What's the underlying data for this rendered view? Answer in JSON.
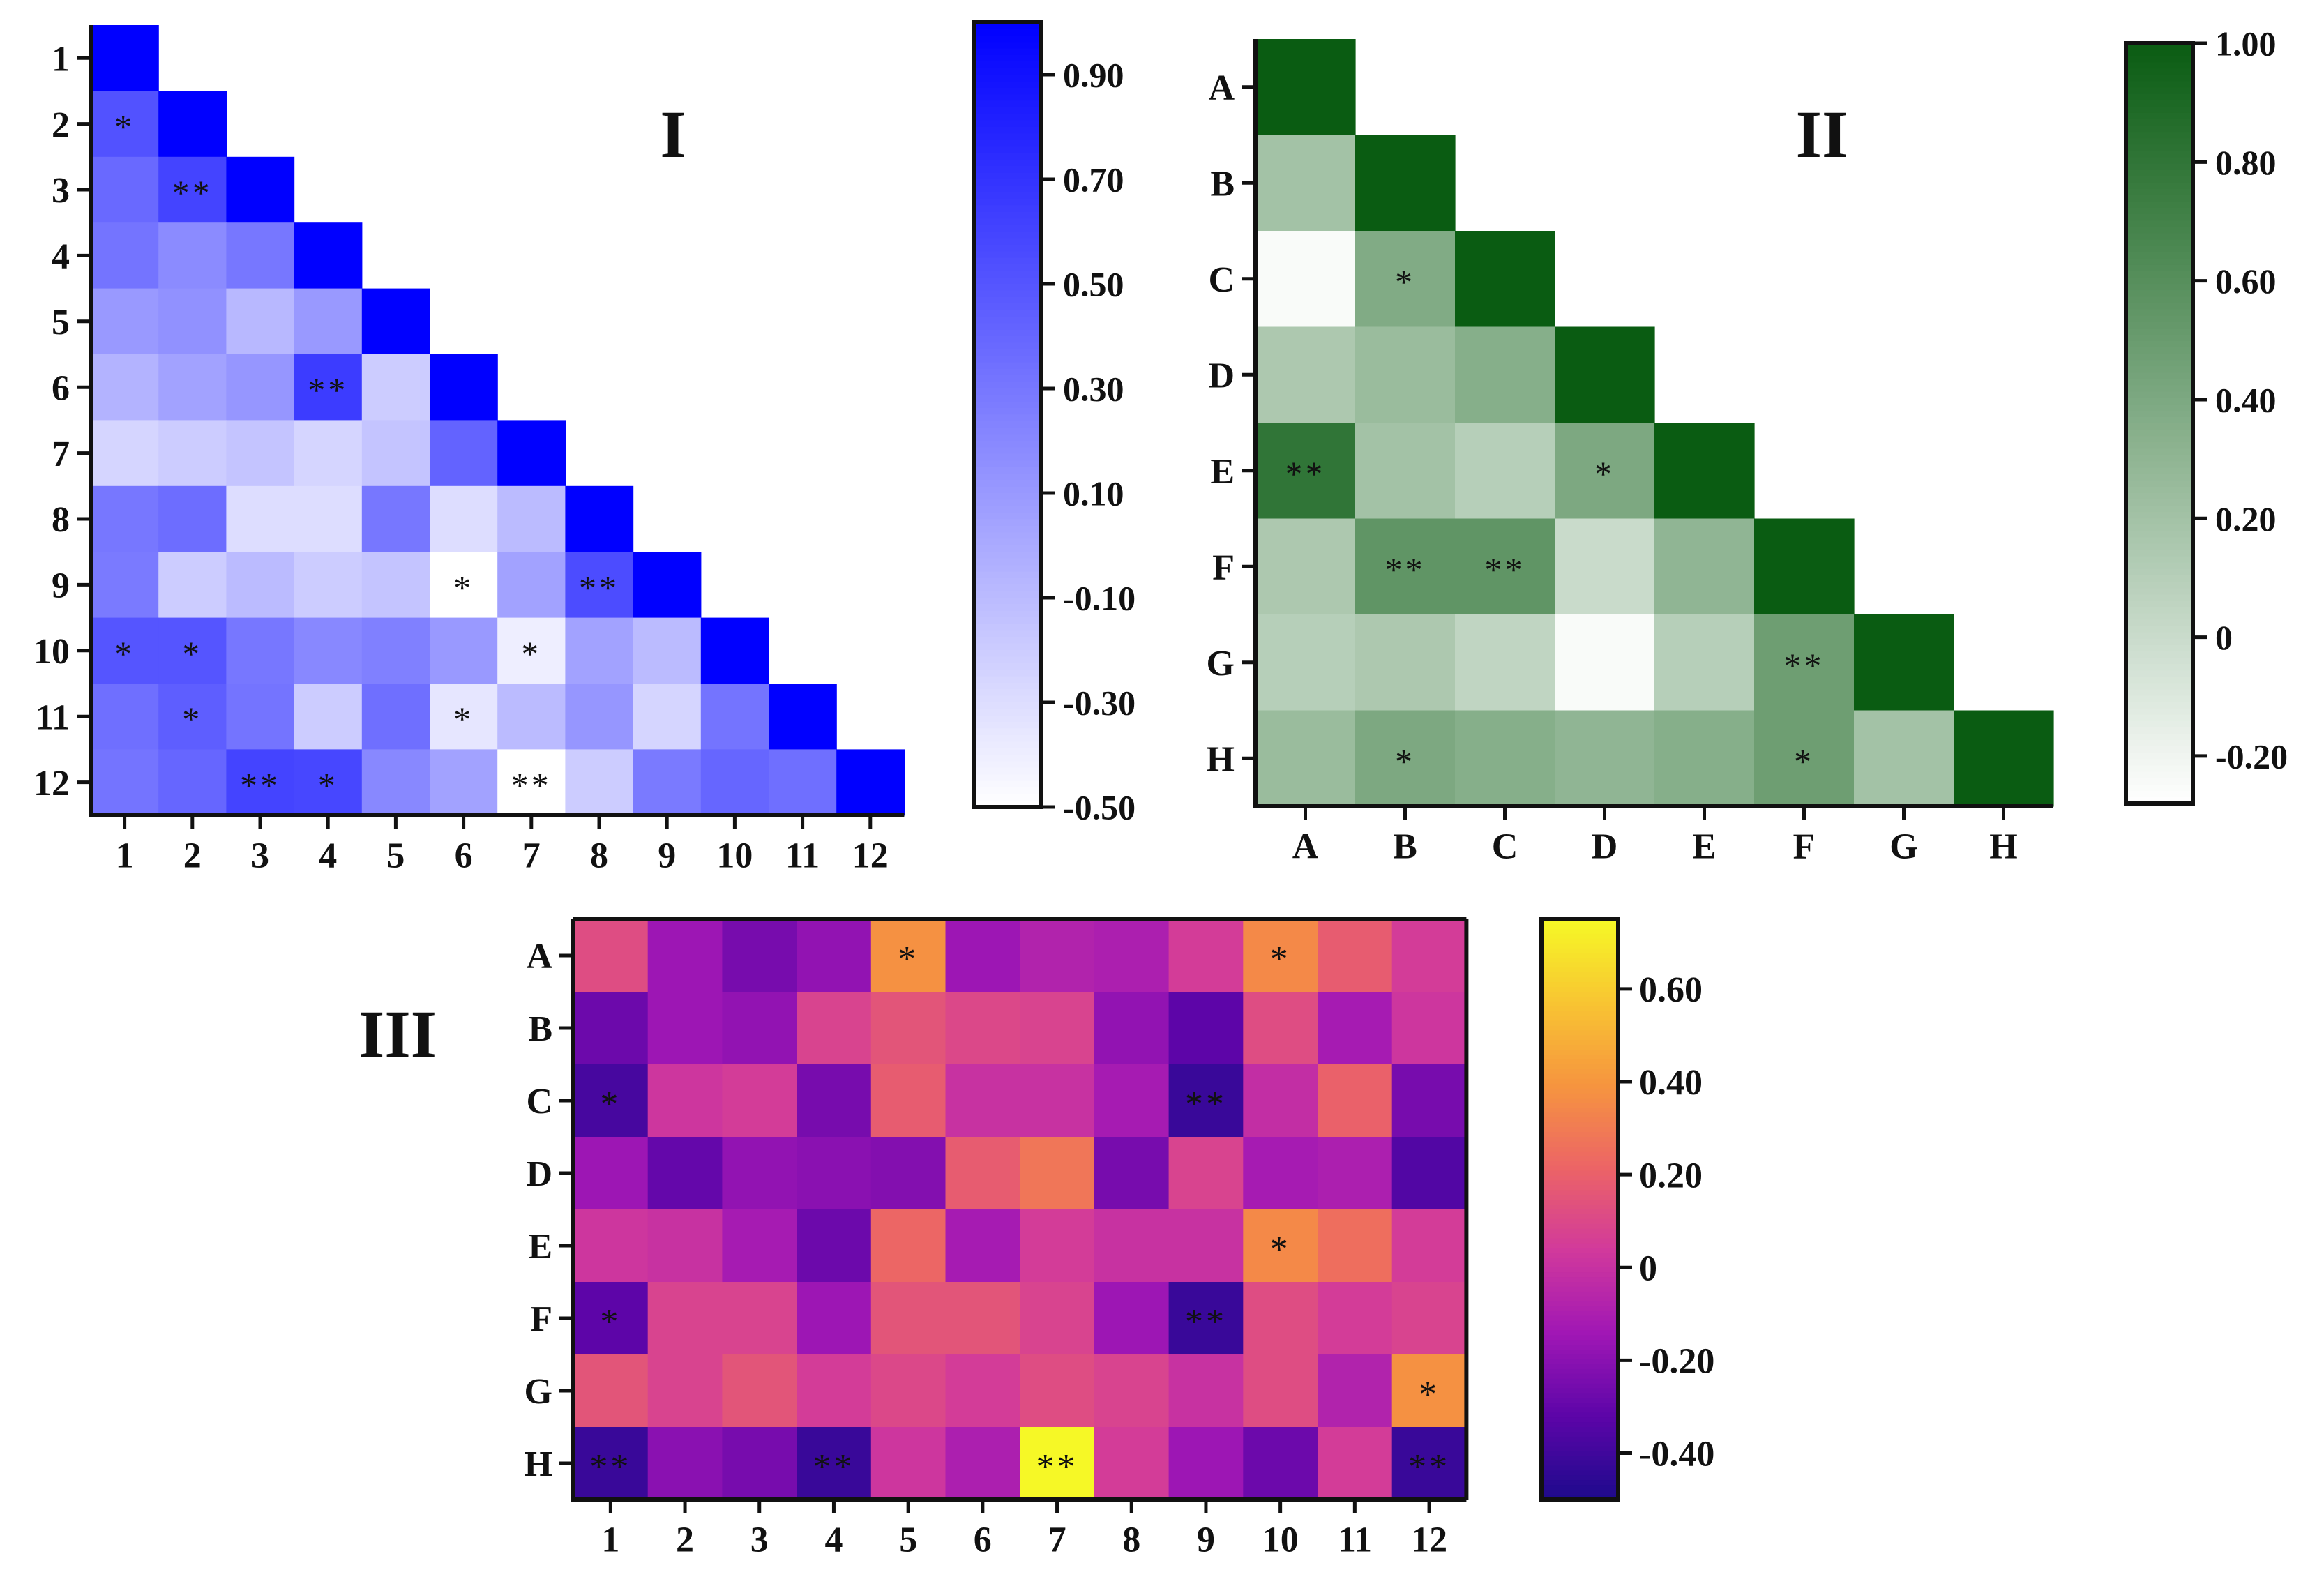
{
  "chart_data": [
    {
      "type": "heatmap",
      "panel": "I",
      "title": "I",
      "shape": "lower-triangle",
      "row_labels": [
        "1",
        "2",
        "3",
        "4",
        "5",
        "6",
        "7",
        "8",
        "9",
        "10",
        "11",
        "12"
      ],
      "col_labels": [
        "1",
        "2",
        "3",
        "4",
        "5",
        "6",
        "7",
        "8",
        "9",
        "10",
        "11",
        "12"
      ],
      "values": [
        [
          1.0
        ],
        [
          0.52,
          1.0
        ],
        [
          0.38,
          0.6,
          1.0
        ],
        [
          0.32,
          0.18,
          0.3,
          1.0
        ],
        [
          0.1,
          0.15,
          -0.08,
          0.1,
          1.0
        ],
        [
          -0.05,
          0.05,
          0.12,
          0.65,
          -0.2,
          1.0
        ],
        [
          -0.25,
          -0.2,
          -0.15,
          -0.25,
          -0.15,
          0.42,
          1.0
        ],
        [
          0.3,
          0.36,
          -0.3,
          -0.3,
          0.3,
          -0.3,
          -0.1,
          1.0
        ],
        [
          0.28,
          -0.2,
          -0.1,
          -0.2,
          -0.15,
          -0.5,
          0.05,
          0.55,
          1.0
        ],
        [
          0.5,
          0.5,
          0.3,
          0.2,
          0.25,
          0.1,
          -0.4,
          0.05,
          -0.1,
          1.0
        ],
        [
          0.35,
          0.45,
          0.32,
          -0.2,
          0.35,
          -0.35,
          -0.1,
          0.12,
          -0.25,
          0.32,
          1.0
        ],
        [
          0.32,
          0.4,
          0.6,
          0.58,
          0.2,
          0.05,
          -0.5,
          -0.2,
          0.28,
          0.4,
          0.35,
          1.0
        ]
      ],
      "stars": [
        [
          ""
        ],
        [
          "*",
          ""
        ],
        [
          "",
          "**",
          ""
        ],
        [
          "",
          "",
          "",
          ""
        ],
        [
          "",
          "",
          "",
          "",
          ""
        ],
        [
          "",
          "",
          "",
          "**",
          "",
          ""
        ],
        [
          "",
          "",
          "",
          "",
          "",
          "",
          ""
        ],
        [
          "",
          "",
          "",
          "",
          "",
          "",
          "",
          ""
        ],
        [
          "",
          "",
          "",
          "",
          "",
          "*",
          "",
          "**",
          ""
        ],
        [
          "*",
          "*",
          "",
          "",
          "",
          "",
          "*",
          "",
          "",
          ""
        ],
        [
          "",
          "*",
          "",
          "",
          "",
          "*",
          "",
          "",
          "",
          "",
          ""
        ],
        [
          "",
          "",
          "**",
          "*",
          "",
          "",
          "**",
          "",
          "",
          "",
          "",
          ""
        ]
      ],
      "colorscale": {
        "min": -0.5,
        "max": 1.0,
        "low_color": "#ffffff",
        "high_color": "#0000ff",
        "ticks": [
          "0.90",
          "0.70",
          "0.50",
          "0.30",
          "0.10",
          "-0.10",
          "-0.30",
          "-0.50"
        ],
        "tick_values": [
          0.9,
          0.7,
          0.5,
          0.3,
          0.1,
          -0.1,
          -0.3,
          -0.5
        ]
      }
    },
    {
      "type": "heatmap",
      "panel": "II",
      "title": "II",
      "shape": "lower-triangle",
      "row_labels": [
        "A",
        "B",
        "C",
        "D",
        "E",
        "F",
        "G",
        "H"
      ],
      "col_labels": [
        "A",
        "B",
        "C",
        "D",
        "E",
        "F",
        "G",
        "H"
      ],
      "values": [
        [
          1.0
        ],
        [
          0.2,
          1.0
        ],
        [
          -0.25,
          0.38,
          1.0
        ],
        [
          0.15,
          0.25,
          0.35,
          1.0
        ],
        [
          0.8,
          0.2,
          0.1,
          0.4,
          1.0
        ],
        [
          0.15,
          0.55,
          0.55,
          0.0,
          0.3,
          1.0
        ],
        [
          0.1,
          0.15,
          0.05,
          -0.25,
          0.1,
          0.48,
          1.0
        ],
        [
          0.25,
          0.4,
          0.35,
          0.3,
          0.35,
          0.48,
          0.2,
          1.0
        ]
      ],
      "stars": [
        [
          ""
        ],
        [
          "",
          ""
        ],
        [
          "",
          "*",
          ""
        ],
        [
          "",
          "",
          "",
          ""
        ],
        [
          "**",
          "",
          "",
          "*",
          ""
        ],
        [
          "",
          "**",
          "**",
          "",
          "",
          ""
        ],
        [
          "",
          "",
          "",
          "",
          "",
          "**",
          ""
        ],
        [
          "",
          "*",
          "",
          "",
          "",
          "*",
          "",
          ""
        ]
      ],
      "colorscale": {
        "min": -0.28,
        "max": 1.0,
        "low_color": "#ffffff",
        "high_color": "#0a5c12",
        "ticks": [
          "1.00",
          "0.80",
          "0.60",
          "0.40",
          "0.20",
          "0",
          "-0.20"
        ],
        "tick_values": [
          1.0,
          0.8,
          0.6,
          0.4,
          0.2,
          0.0,
          -0.2
        ]
      }
    },
    {
      "type": "heatmap",
      "panel": "III",
      "title": "III",
      "shape": "full",
      "row_labels": [
        "A",
        "B",
        "C",
        "D",
        "E",
        "F",
        "G",
        "H"
      ],
      "col_labels": [
        "1",
        "2",
        "3",
        "4",
        "5",
        "6",
        "7",
        "8",
        "9",
        "10",
        "11",
        "12"
      ],
      "values": [
        [
          0.12,
          -0.15,
          -0.25,
          -0.18,
          0.38,
          -0.15,
          -0.08,
          -0.1,
          0.05,
          0.35,
          0.18,
          0.05
        ],
        [
          -0.28,
          -0.15,
          -0.18,
          0.08,
          0.15,
          0.1,
          0.08,
          -0.18,
          -0.32,
          0.12,
          -0.12,
          0.02
        ],
        [
          -0.38,
          0.02,
          0.05,
          -0.25,
          0.18,
          0.0,
          0.0,
          -0.12,
          -0.42,
          -0.02,
          0.2,
          -0.25
        ],
        [
          -0.15,
          -0.3,
          -0.18,
          -0.2,
          -0.22,
          0.18,
          0.28,
          -0.25,
          0.08,
          -0.12,
          -0.1,
          -0.35
        ],
        [
          0.02,
          0.0,
          -0.12,
          -0.28,
          0.22,
          -0.12,
          0.05,
          0.0,
          0.0,
          0.35,
          0.25,
          0.05
        ],
        [
          -0.32,
          0.08,
          0.08,
          -0.15,
          0.15,
          0.15,
          0.08,
          -0.15,
          -0.42,
          0.12,
          0.05,
          0.08
        ],
        [
          0.15,
          0.08,
          0.15,
          0.05,
          0.1,
          0.05,
          0.12,
          0.08,
          0.0,
          0.12,
          -0.08,
          0.38
        ],
        [
          -0.42,
          -0.2,
          -0.25,
          -0.42,
          0.02,
          -0.1,
          0.75,
          0.05,
          -0.15,
          -0.28,
          0.05,
          -0.42
        ]
      ],
      "stars": [
        [
          "",
          "",
          "",
          "",
          "*",
          "",
          "",
          "",
          "",
          "*",
          "",
          ""
        ],
        [
          "",
          "",
          "",
          "",
          "",
          "",
          "",
          "",
          "",
          "",
          "",
          ""
        ],
        [
          "*",
          "",
          "",
          "",
          "",
          "",
          "",
          "",
          "**",
          "",
          "",
          ""
        ],
        [
          "",
          "",
          "",
          "",
          "",
          "",
          "",
          "",
          "",
          "",
          "",
          ""
        ],
        [
          "",
          "",
          "",
          "",
          "",
          "",
          "",
          "",
          "",
          "*",
          "",
          ""
        ],
        [
          "*",
          "",
          "",
          "",
          "",
          "",
          "",
          "",
          "**",
          "",
          "",
          ""
        ],
        [
          "",
          "",
          "",
          "",
          "",
          "",
          "",
          "",
          "",
          "",
          "",
          "*"
        ],
        [
          "**",
          "",
          "",
          "**",
          "",
          "",
          "**",
          "",
          "",
          "",
          "",
          "**"
        ]
      ],
      "colorscale": {
        "min": -0.5,
        "max": 0.75,
        "palette": "plasma",
        "stops": [
          "#1d0a8c",
          "#5c05a8",
          "#a017b5",
          "#d1399c",
          "#ec6466",
          "#f6953f",
          "#f8c532",
          "#f6f826"
        ],
        "ticks": [
          "0.60",
          "0.40",
          "0.20",
          "0",
          "-0.20",
          "-0.40"
        ],
        "tick_values": [
          0.6,
          0.4,
          0.2,
          0.0,
          -0.2,
          -0.4
        ]
      }
    }
  ]
}
